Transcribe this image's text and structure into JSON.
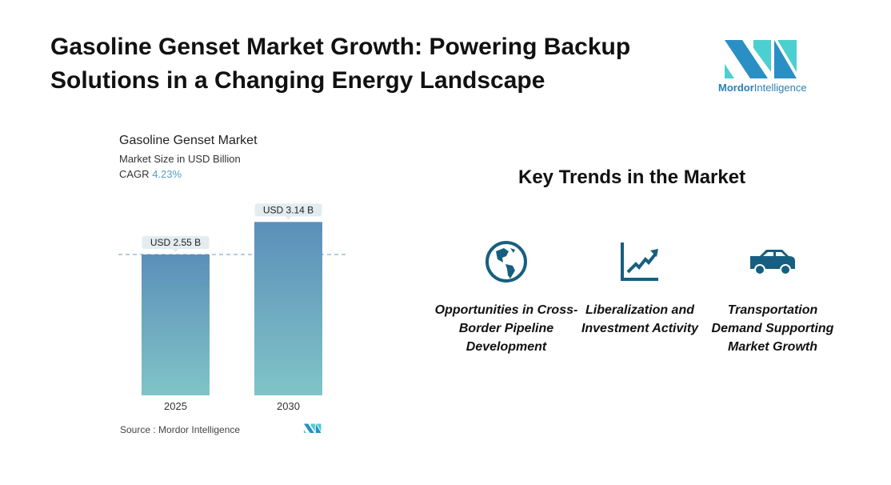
{
  "header": {
    "title": "Gasoline Genset Market Growth: Powering Backup Solutions in a Changing Energy Landscape"
  },
  "logo": {
    "brand": "Mordor",
    "brand2": "Intelligence",
    "colors": [
      "#2a8fc4",
      "#4ccfcf"
    ]
  },
  "chart_data": {
    "type": "bar",
    "title": "Gasoline Genset Market",
    "subtitle": "Market Size in USD Billion",
    "cagr_label": "CAGR",
    "cagr_value": "4.23%",
    "categories": [
      "2025",
      "2030"
    ],
    "values": [
      2.55,
      3.14
    ],
    "data_labels": [
      "USD 2.55 B",
      "USD 3.14 B"
    ],
    "reference_line": 2.55,
    "colors": {
      "bar_top": "#5b8fb9",
      "bar_bottom": "#80c4c7",
      "label_bg": "#e3edf0",
      "ref_line": "#6a9cbf"
    }
  },
  "source": "Source :  Mordor Intelligence",
  "trends": {
    "heading": "Key Trends in the Market",
    "icon_color": "#175f80",
    "items": [
      {
        "icon": "globe-icon",
        "label": "Opportunities in Cross-Border Pipeline Development"
      },
      {
        "icon": "trend-chart-icon",
        "label": "Liberalization and Investment Activity"
      },
      {
        "icon": "car-icon",
        "label": "Transportation Demand Supporting Market Growth"
      }
    ]
  }
}
